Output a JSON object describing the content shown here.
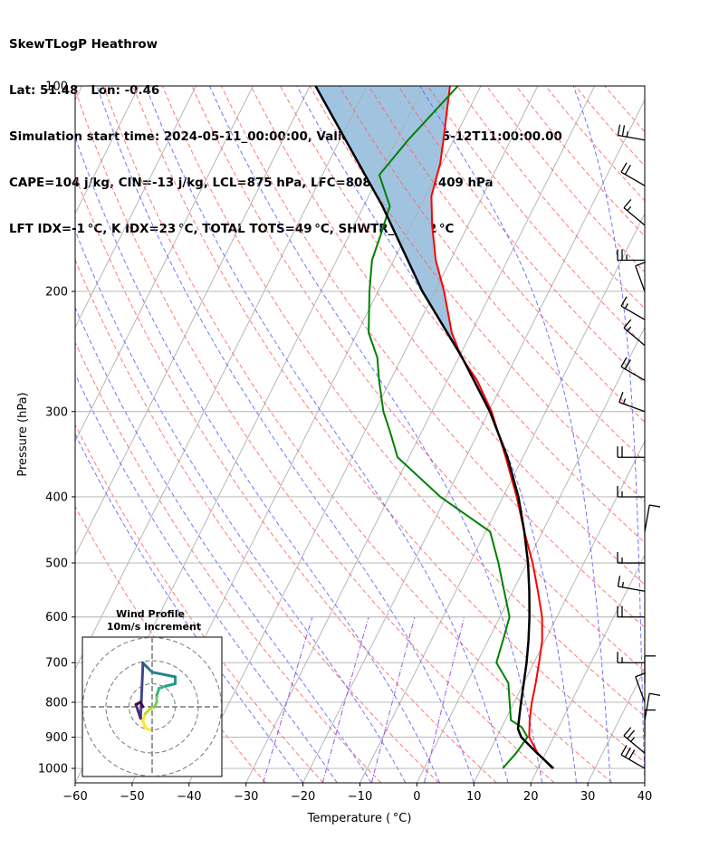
{
  "header": {
    "line1": "SkewTLogP Heathrow",
    "line2": "Lat: 51.48   Lon: -0.46",
    "line3": "Simulation start time: 2024-05-11_00:00:00, Valid time: 2024-05-12T11:00:00.00",
    "line4": "CAPE=104 j/kg, CIN=-13 j/kg, LCL=875 hPa, LFC=808 hPa, EQ=409 hPa",
    "line5": "LFT IDX=-1 °C, K IDX=23 °C, TOTAL TOTS=49 °C, SHWTR_IDX=2 °C"
  },
  "chart_data": {
    "type": "line",
    "xlabel": "Temperature ( °C)",
    "ylabel": "Pressure (hPa)",
    "xlim": [
      -60,
      40
    ],
    "ylim": [
      1050,
      100
    ],
    "y_scale": "log",
    "x_ticks": [
      "−60",
      "−50",
      "−40",
      "−30",
      "−20",
      "−10",
      "0",
      "10",
      "20",
      "30",
      "40"
    ],
    "y_ticks": [
      "100",
      "200",
      "300",
      "400",
      "500",
      "600",
      "700",
      "800",
      "900",
      "1000"
    ],
    "colors": {
      "temperature": "#ff0000",
      "dewpoint": "#008000",
      "parcel": "#000000",
      "cape": "#a0c4e0",
      "isotherm": "#b0b0b0",
      "dry_adiabat": "#ff6060",
      "moist_adiabat": "#5a5aff",
      "mixing_ratio": "#8a2be2"
    },
    "series": [
      {
        "key": "temperature",
        "points": [
          [
            1000,
            22.5
          ],
          [
            950,
            18.6
          ],
          [
            900,
            15.7
          ],
          [
            850,
            14.3
          ],
          [
            800,
            13.1
          ],
          [
            750,
            12.1
          ],
          [
            700,
            10.9
          ],
          [
            650,
            9.5
          ],
          [
            600,
            7.4
          ],
          [
            550,
            4.4
          ],
          [
            500,
            1.0
          ],
          [
            450,
            -3.2
          ],
          [
            400,
            -7.6
          ],
          [
            350,
            -13.0
          ],
          [
            300,
            -19.5
          ],
          [
            270,
            -24.8
          ],
          [
            250,
            -29.5
          ],
          [
            230,
            -33.4
          ],
          [
            200,
            -38.4
          ],
          [
            180,
            -42.6
          ],
          [
            160,
            -46.3
          ],
          [
            145,
            -49.0
          ],
          [
            130,
            -50.3
          ],
          [
            120,
            -51.8
          ],
          [
            100,
            -55.4
          ]
        ]
      },
      {
        "key": "dewpoint",
        "points": [
          [
            1000,
            13.8
          ],
          [
            950,
            14.8
          ],
          [
            900,
            15.4
          ],
          [
            870,
            13.5
          ],
          [
            850,
            11.0
          ],
          [
            800,
            9.2
          ],
          [
            750,
            7.3
          ],
          [
            700,
            3.4
          ],
          [
            650,
            2.6
          ],
          [
            600,
            1.7
          ],
          [
            550,
            -1.5
          ],
          [
            500,
            -5.0
          ],
          [
            450,
            -9.2
          ],
          [
            400,
            -21.0
          ],
          [
            350,
            -32.0
          ],
          [
            320,
            -35.7
          ],
          [
            300,
            -38.5
          ],
          [
            270,
            -42.0
          ],
          [
            250,
            -44.3
          ],
          [
            230,
            -48.0
          ],
          [
            200,
            -51.5
          ],
          [
            180,
            -53.8
          ],
          [
            165,
            -54.5
          ],
          [
            150,
            -55.4
          ],
          [
            135,
            -60.0
          ],
          [
            120,
            -58.0
          ],
          [
            100,
            -54.0
          ]
        ]
      },
      {
        "key": "parcel",
        "points": [
          [
            1000,
            22.7
          ],
          [
            950,
            18.5
          ],
          [
            900,
            14.3
          ],
          [
            875,
            13.0
          ],
          [
            850,
            12.4
          ],
          [
            800,
            11.2
          ],
          [
            750,
            10.0
          ],
          [
            700,
            8.7
          ],
          [
            650,
            7.1
          ],
          [
            600,
            5.2
          ],
          [
            550,
            2.9
          ],
          [
            500,
            0.2
          ],
          [
            450,
            -3.2
          ],
          [
            400,
            -7.3
          ],
          [
            350,
            -12.7
          ],
          [
            300,
            -19.8
          ],
          [
            250,
            -29.4
          ],
          [
            200,
            -42.2
          ],
          [
            150,
            -56.7
          ],
          [
            100,
            -79.0
          ]
        ]
      }
    ],
    "wind_barbs": [
      {
        "p": 1000,
        "speed_kt": 30,
        "dir": 300
      },
      {
        "p": 950,
        "speed_kt": 25,
        "dir": 310
      },
      {
        "p": 900,
        "speed_kt": 10,
        "dir": 0
      },
      {
        "p": 850,
        "speed_kt": 10,
        "dir": 10
      },
      {
        "p": 800,
        "speed_kt": 10,
        "dir": 340
      },
      {
        "p": 750,
        "speed_kt": 10,
        "dir": 0
      },
      {
        "p": 700,
        "speed_kt": 15,
        "dir": 270
      },
      {
        "p": 600,
        "speed_kt": 20,
        "dir": 270
      },
      {
        "p": 550,
        "speed_kt": 15,
        "dir": 280
      },
      {
        "p": 500,
        "speed_kt": 15,
        "dir": 270
      },
      {
        "p": 450,
        "speed_kt": 10,
        "dir": 10
      },
      {
        "p": 400,
        "speed_kt": 15,
        "dir": 270
      },
      {
        "p": 350,
        "speed_kt": 20,
        "dir": 270
      },
      {
        "p": 300,
        "speed_kt": 15,
        "dir": 290
      },
      {
        "p": 270,
        "speed_kt": 20,
        "dir": 300
      },
      {
        "p": 240,
        "speed_kt": 15,
        "dir": 310
      },
      {
        "p": 220,
        "speed_kt": 15,
        "dir": 300
      },
      {
        "p": 200,
        "speed_kt": 10,
        "dir": 340
      },
      {
        "p": 180,
        "speed_kt": 25,
        "dir": 270
      },
      {
        "p": 160,
        "speed_kt": 15,
        "dir": 310
      },
      {
        "p": 140,
        "speed_kt": 20,
        "dir": 300
      },
      {
        "p": 120,
        "speed_kt": 25,
        "dir": 280
      }
    ],
    "hodograph": {
      "title_line1": "Wind Profile",
      "title_line2": "10m/s increment",
      "rings": [
        10,
        20,
        30
      ],
      "points": [
        [
          -1,
          -10
        ],
        [
          -3,
          -9
        ],
        [
          -4,
          -6
        ],
        [
          -3,
          -3
        ],
        [
          -1,
          -1
        ],
        [
          1,
          0
        ],
        [
          2,
          2
        ],
        [
          2,
          5
        ],
        [
          3,
          8
        ],
        [
          6,
          9
        ],
        [
          10,
          10
        ],
        [
          10,
          13
        ],
        [
          5,
          14
        ],
        [
          0,
          15
        ],
        [
          -2,
          17
        ],
        [
          -3,
          18
        ],
        [
          -4,
          19
        ],
        [
          -4,
          18
        ],
        [
          -5,
          -5
        ],
        [
          -6,
          -2
        ],
        [
          -7,
          1
        ],
        [
          -5,
          2
        ],
        [
          -4,
          0
        ]
      ]
    }
  }
}
